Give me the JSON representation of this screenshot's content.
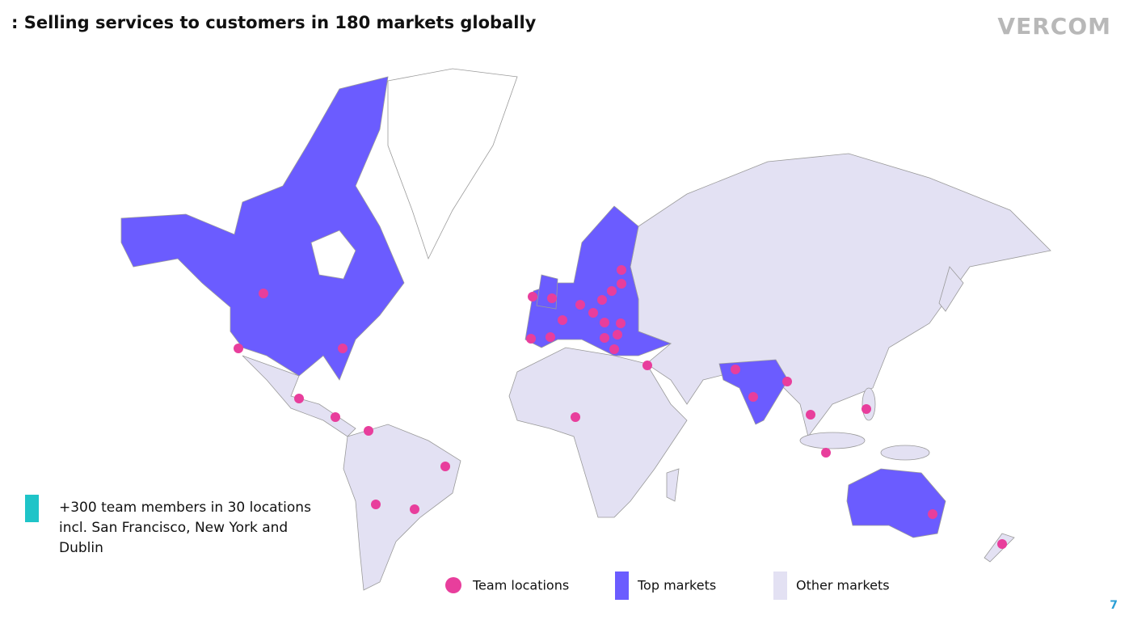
{
  "header": {
    "title": ": Selling services to customers in 180 markets globally",
    "logo": "VERCOM"
  },
  "note": "+300 team members in 30 locations incl. San Francisco, New York and Dublin",
  "legend": [
    "Team locations",
    "Top markets",
    "Other markets"
  ],
  "page_number": "7"
}
